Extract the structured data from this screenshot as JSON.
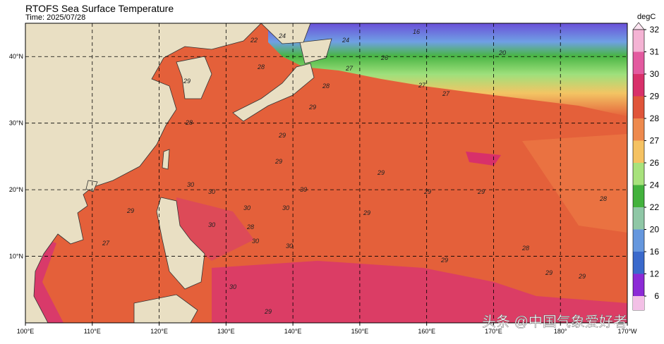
{
  "map": {
    "title": "RTOFS Sea Surface Temperature",
    "time": "Time: 2025/07/28",
    "lon_ticks": [
      {
        "value": 100,
        "label": "100°E"
      },
      {
        "value": 110,
        "label": "110°E"
      },
      {
        "value": 120,
        "label": "120°E"
      },
      {
        "value": 130,
        "label": "130°E"
      },
      {
        "value": 140,
        "label": "140°E"
      },
      {
        "value": 150,
        "label": "150°E"
      },
      {
        "value": 160,
        "label": "160°E"
      },
      {
        "value": 170,
        "label": "170°E"
      },
      {
        "value": 180,
        "label": "180°"
      },
      {
        "value": 190,
        "label": "170°W"
      }
    ],
    "lat_ticks": [
      {
        "value": 10,
        "label": "10°N"
      },
      {
        "value": 20,
        "label": "20°N"
      },
      {
        "value": 30,
        "label": "30°N"
      },
      {
        "value": 40,
        "label": "40°N"
      }
    ],
    "colorbar": {
      "label": "degC",
      "ticks": [
        32,
        31,
        30,
        29,
        28,
        27,
        26,
        24,
        22,
        20,
        16,
        12,
        6
      ],
      "colors": [
        "#f4b3d4",
        "#e35aa0",
        "#d8306a",
        "#e0553a",
        "#ee8a4e",
        "#f5c262",
        "#a8e27c",
        "#43b23d",
        "#8fc7a6",
        "#6597de",
        "#3a69cc",
        "#8c2ad6"
      ]
    },
    "contour_labels": [
      24,
      22,
      20,
      16,
      26,
      24,
      28,
      27,
      29,
      28,
      27,
      27,
      29,
      28,
      29,
      29,
      29,
      30,
      30,
      30,
      30,
      29,
      28,
      30,
      30,
      29,
      29,
      30,
      28,
      29,
      30,
      27,
      29,
      28,
      29,
      29,
      30,
      29
    ]
  },
  "watermark": "头条 @中国气象爱好者"
}
